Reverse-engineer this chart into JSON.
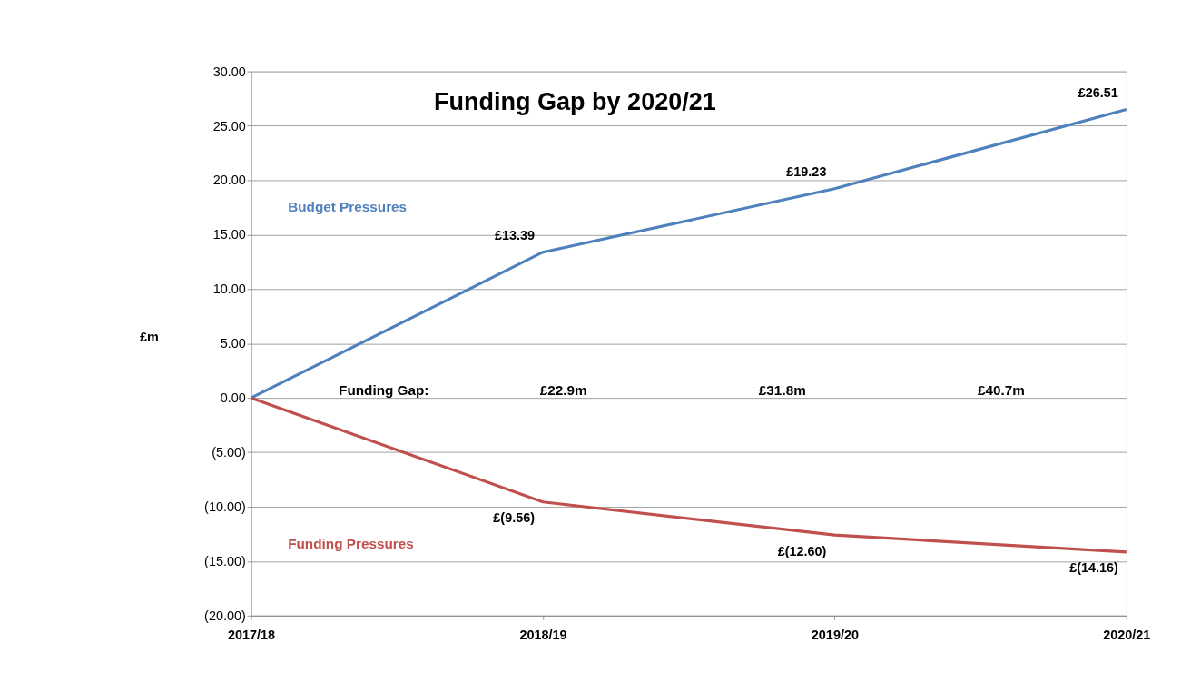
{
  "chart_data": {
    "type": "line",
    "title": "Funding Gap by 2020/21",
    "ylabel": "£m",
    "categories": [
      "2017/18",
      "2018/19",
      "2019/20",
      "2020/21"
    ],
    "series": [
      {
        "name": "Budget Pressures",
        "color": "#4f81bd",
        "values": [
          0,
          13.39,
          19.23,
          26.51
        ],
        "value_labels": [
          null,
          "£13.39",
          "£19.23",
          "£26.51"
        ]
      },
      {
        "name": "Funding Pressures",
        "color": "#c0504d",
        "values": [
          0,
          -9.56,
          -12.6,
          -14.16
        ],
        "value_labels": [
          null,
          "£(9.56)",
          "£(12.60)",
          "£(14.16)"
        ]
      }
    ],
    "annotations": [
      "Funding Gap:",
      "£22.9m",
      "£31.8m",
      "£40.7m"
    ],
    "ylim": [
      -20,
      30
    ],
    "yticks": [
      {
        "value": -20,
        "label": "(20.00)"
      },
      {
        "value": -15,
        "label": "(15.00)"
      },
      {
        "value": -10,
        "label": "(10.00)"
      },
      {
        "value": -5,
        "label": "(5.00)"
      },
      {
        "value": 0,
        "label": "0.00"
      },
      {
        "value": 5,
        "label": "5.00"
      },
      {
        "value": 10,
        "label": "10.00"
      },
      {
        "value": 15,
        "label": "15.00"
      },
      {
        "value": 20,
        "label": "20.00"
      },
      {
        "value": 25,
        "label": "25.00"
      },
      {
        "value": 30,
        "label": "30.00"
      }
    ],
    "grid": "y",
    "legend": false,
    "marker": "none",
    "line_style": "solid"
  }
}
